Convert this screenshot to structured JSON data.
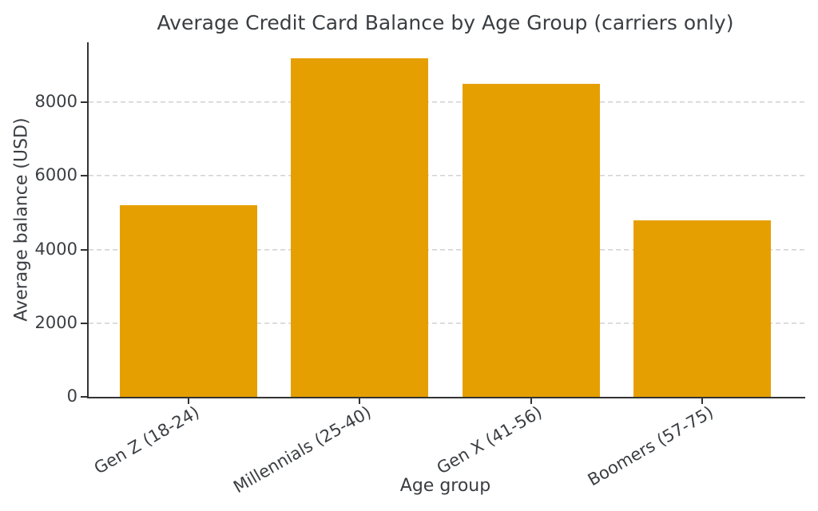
{
  "chart_data": {
    "type": "bar",
    "title": "Average Credit Card Balance by Age Group (carriers only)",
    "xlabel": "Age group",
    "ylabel": "Average balance (USD)",
    "categories": [
      "Gen Z (18-24)",
      "Millennials (25-40)",
      "Gen X (41-56)",
      "Boomers (57-75)"
    ],
    "values": [
      5200,
      9200,
      8500,
      4800
    ],
    "yticks": [
      0,
      2000,
      4000,
      6000,
      8000
    ],
    "ylim": [
      0,
      9630
    ],
    "grid": "horizontal-dashed",
    "legend": "none",
    "tick_label_rotation_deg": 30,
    "bar_color": "#E69F00"
  },
  "colors": {
    "bar": "#E69F00",
    "text": "#3a3e42",
    "grid": "#d4d4d4",
    "spine": "#333333",
    "background": "#ffffff"
  }
}
